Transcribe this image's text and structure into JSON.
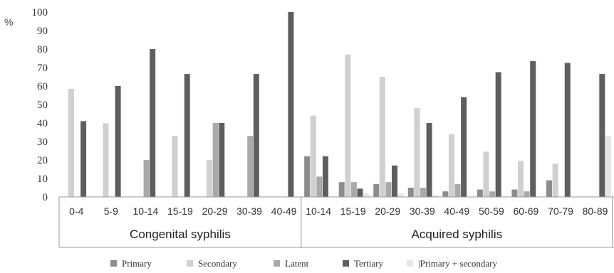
{
  "chart_data": {
    "type": "bar",
    "ylabel": "%",
    "ylim": [
      0,
      100
    ],
    "y_ticks": [
      "0",
      "10",
      "20",
      "30",
      "40",
      "50",
      "60",
      "70",
      "80",
      "90",
      "100"
    ],
    "grid": false,
    "legend_position": "bottom",
    "groups": [
      {
        "label": "Congenital syphilis",
        "categories": [
          "0-4",
          "5-9",
          "10-14",
          "15-19",
          "20-29",
          "30-39",
          "40-49"
        ]
      },
      {
        "label": "Acquired syphilis",
        "categories": [
          "10-14",
          "15-19",
          "20-29",
          "30-39",
          "40-49",
          "50-59",
          "60-69",
          "70-79",
          "80-89"
        ]
      }
    ],
    "categories": [
      "0-4",
      "5-9",
      "10-14",
      "15-19",
      "20-29",
      "30-39",
      "40-49",
      "10-14",
      "15-19",
      "20-29",
      "30-39",
      "40-49",
      "50-59",
      "60-69",
      "70-79",
      "80-89"
    ],
    "series": [
      {
        "name": "Primary",
        "color": "#8c8c8c",
        "values": [
          0,
          0,
          0,
          0,
          0,
          0,
          0,
          22,
          8,
          7,
          5,
          3,
          4,
          4,
          9,
          0
        ]
      },
      {
        "name": "Secondary",
        "color": "#d0d0d0",
        "values": [
          58.5,
          39.8,
          0,
          33,
          20,
          0,
          0,
          44,
          77,
          65,
          48,
          34,
          24.5,
          19.5,
          18,
          0
        ]
      },
      {
        "name": "Latent",
        "color": "#a9a9a9",
        "values": [
          0,
          0,
          20,
          0,
          40,
          33,
          0,
          11,
          8,
          8,
          5,
          7,
          3,
          3,
          0,
          0
        ]
      },
      {
        "name": "Tertiary",
        "color": "#5e5e5e",
        "values": [
          41,
          60,
          80,
          66.5,
          40,
          66.5,
          100,
          22,
          4.5,
          17,
          40,
          54,
          67.5,
          73.5,
          72.5,
          66.5
        ]
      },
      {
        "name": "|Primary + secondary",
        "color": "#e6e6e6",
        "values": [
          0,
          0,
          0,
          0,
          0,
          0,
          0,
          0,
          2,
          2,
          1,
          0,
          0,
          0,
          0,
          33
        ]
      }
    ]
  }
}
